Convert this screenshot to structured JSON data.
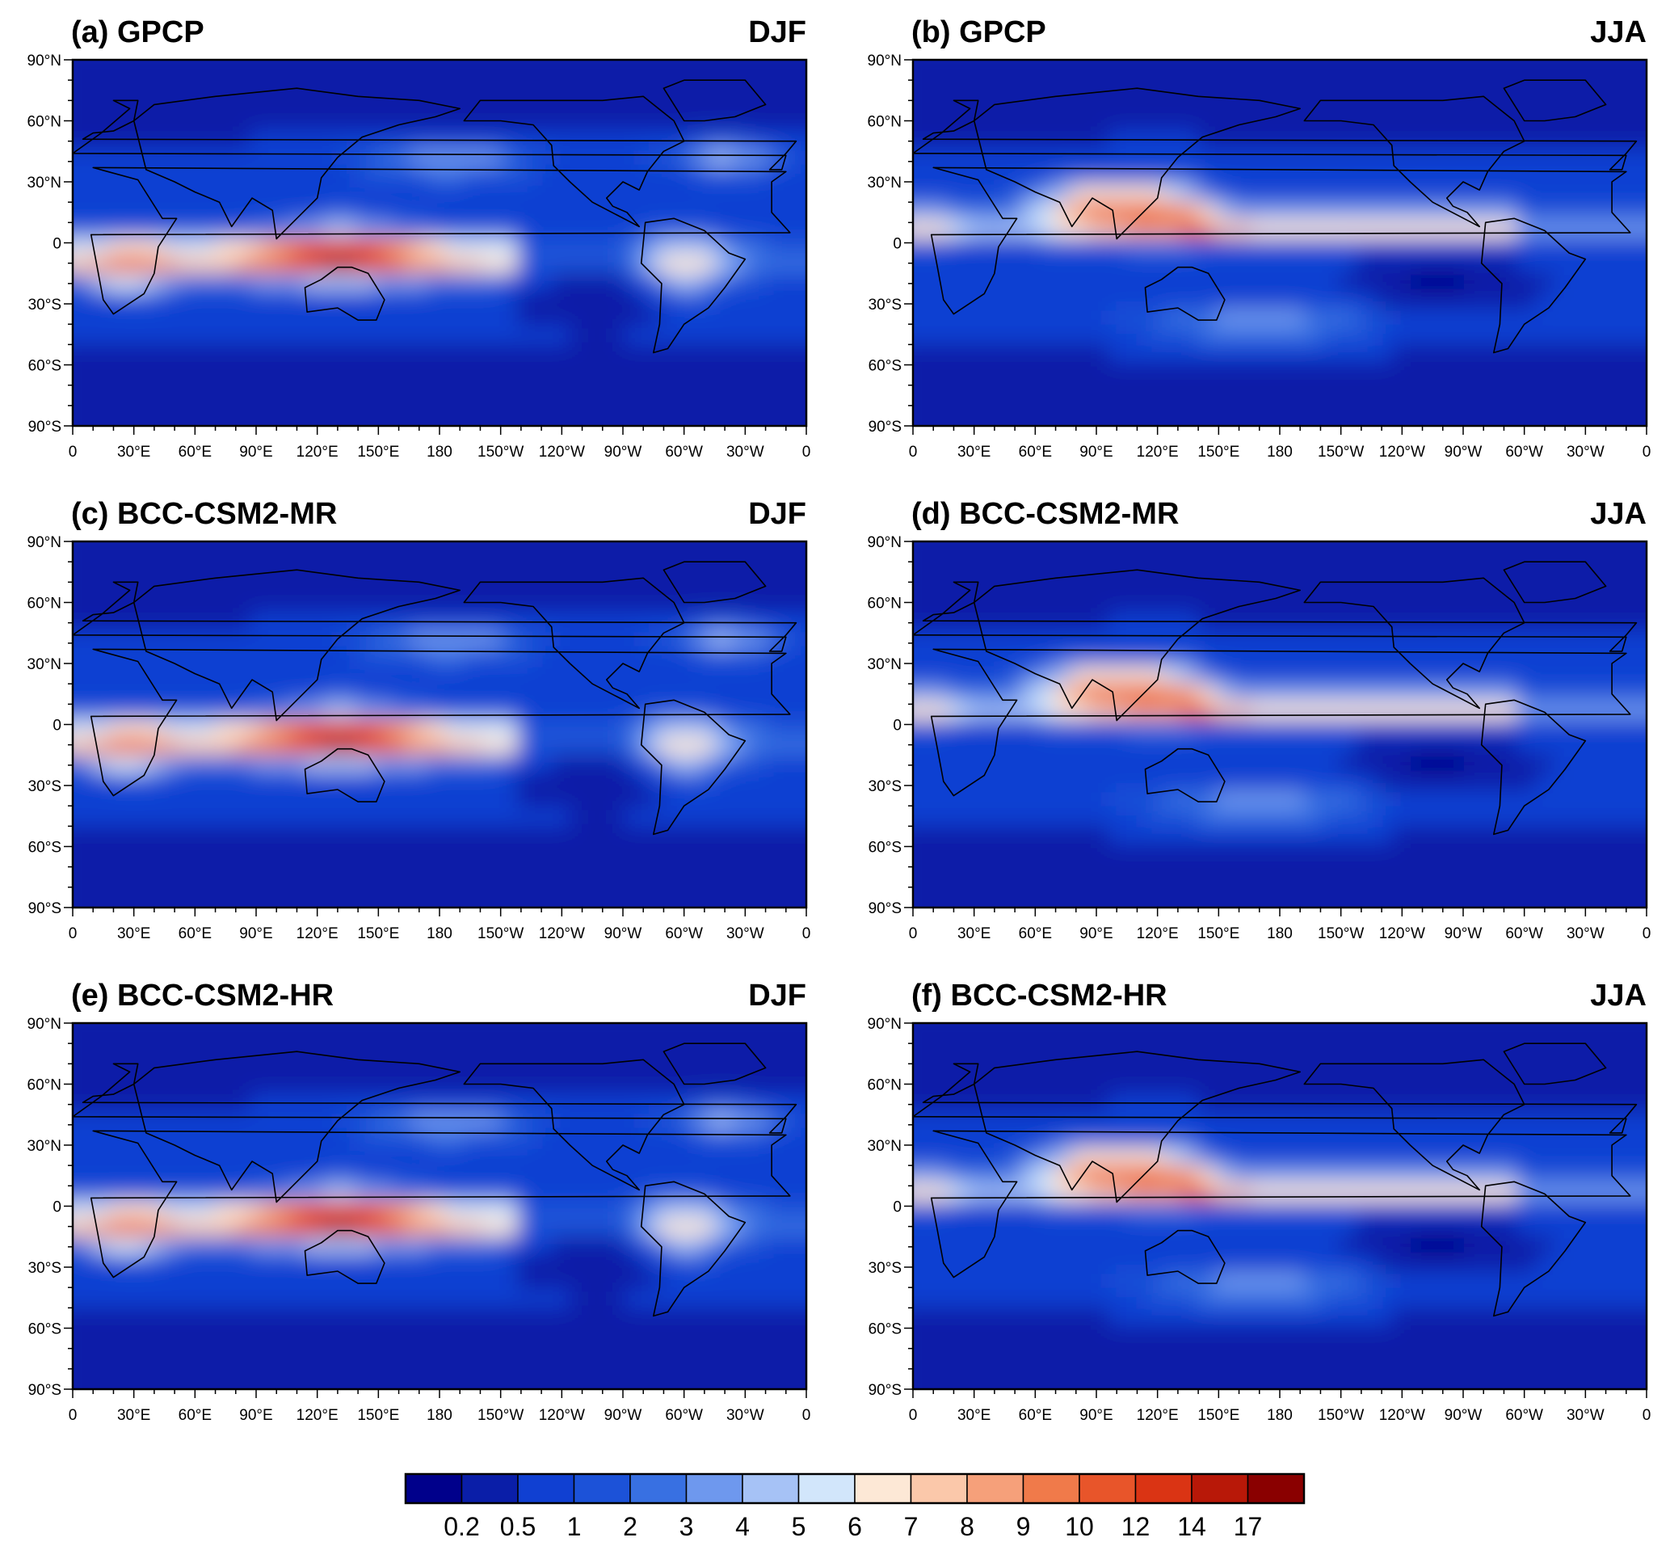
{
  "panels": [
    {
      "letter": "(a)",
      "name": "GPCP",
      "season": "DJF",
      "pattern": "djf"
    },
    {
      "letter": "(b)",
      "name": "GPCP",
      "season": "JJA",
      "pattern": "jja"
    },
    {
      "letter": "(c)",
      "name": "BCC-CSM2-MR",
      "season": "DJF",
      "pattern": "djf"
    },
    {
      "letter": "(d)",
      "name": "BCC-CSM2-MR",
      "season": "JJA",
      "pattern": "jja"
    },
    {
      "letter": "(e)",
      "name": "BCC-CSM2-HR",
      "season": "DJF",
      "pattern": "djf"
    },
    {
      "letter": "(f)",
      "name": "BCC-CSM2-HR",
      "season": "JJA",
      "pattern": "jja"
    }
  ],
  "axes": {
    "lat_labels": [
      "90°N",
      "60°N",
      "30°N",
      "0",
      "30°S",
      "60°S",
      "90°S"
    ],
    "lon_labels": [
      "0",
      "30°E",
      "60°E",
      "90°E",
      "120°E",
      "150°E",
      "180",
      "150°W",
      "120°W",
      "90°W",
      "60°W",
      "30°W",
      "0"
    ]
  },
  "colorbar": {
    "labels": [
      "0.2",
      "0.5",
      "1",
      "2",
      "3",
      "4",
      "5",
      "6",
      "7",
      "8",
      "9",
      "10",
      "12",
      "14",
      "17"
    ],
    "colors": [
      "#00008b",
      "#0a1ea8",
      "#1040d2",
      "#1c52d8",
      "#3870e2",
      "#6e98ee",
      "#a6c2f6",
      "#d2e6fb",
      "#fde8d6",
      "#fbc8aa",
      "#f6a07a",
      "#f07a4a",
      "#e8552a",
      "#da3414",
      "#b81808",
      "#8a0000"
    ]
  }
}
